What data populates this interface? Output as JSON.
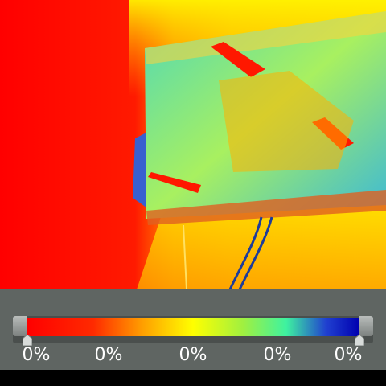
{
  "colors": {
    "panel_background": "#5f6562",
    "palette": [
      "#ff0000",
      "#ff7a00",
      "#ffff00",
      "#3ef2a0",
      "#0000b0"
    ]
  },
  "scale": {
    "labels": [
      "0%",
      "0%",
      "0%",
      "0%",
      "0%"
    ]
  },
  "icons": {
    "left_handle": "slider-handle-icon",
    "right_handle": "slider-handle-icon"
  }
}
